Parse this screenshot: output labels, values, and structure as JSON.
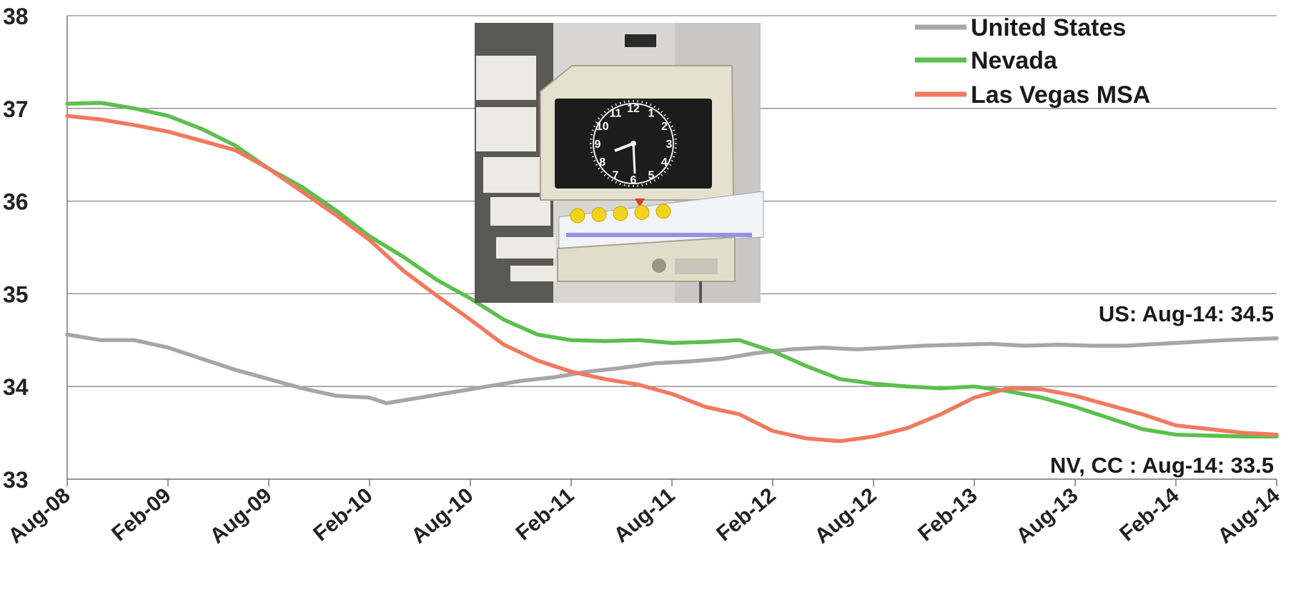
{
  "chart_data": {
    "type": "line",
    "title": "",
    "xlabel": "",
    "ylabel": "",
    "ylim": [
      33,
      38
    ],
    "y_ticks": [
      "33",
      "34",
      "35",
      "36",
      "37",
      "38"
    ],
    "grid": true,
    "legend_position": "top-right",
    "x_labels": [
      "Aug-08",
      "Feb-09",
      "Aug-09",
      "Feb-10",
      "Aug-10",
      "Feb-11",
      "Aug-11",
      "Feb-12",
      "Aug-12",
      "Feb-13",
      "Aug-13",
      "Feb-14",
      "Aug-14"
    ],
    "x_start": "2008-08",
    "x_end": "2014-08",
    "series": [
      {
        "name": "United States",
        "color": "#a6a6a6",
        "points": [
          [
            "2008-08",
            34.56
          ],
          [
            "2008-10",
            34.5
          ],
          [
            "2008-12",
            34.5
          ],
          [
            "2009-02",
            34.42
          ],
          [
            "2009-04",
            34.3
          ],
          [
            "2009-06",
            34.18
          ],
          [
            "2009-08",
            34.08
          ],
          [
            "2009-10",
            33.98
          ],
          [
            "2009-12",
            33.9
          ],
          [
            "2010-02",
            33.88
          ],
          [
            "2010-03",
            33.82
          ],
          [
            "2010-05",
            33.88
          ],
          [
            "2010-07",
            33.94
          ],
          [
            "2010-09",
            34.0
          ],
          [
            "2010-11",
            34.06
          ],
          [
            "2011-01",
            34.1
          ],
          [
            "2011-03",
            34.16
          ],
          [
            "2011-05",
            34.2
          ],
          [
            "2011-07",
            34.25
          ],
          [
            "2011-09",
            34.27
          ],
          [
            "2011-11",
            34.3
          ],
          [
            "2012-01",
            34.36
          ],
          [
            "2012-03",
            34.4
          ],
          [
            "2012-05",
            34.42
          ],
          [
            "2012-07",
            34.4
          ],
          [
            "2012-09",
            34.42
          ],
          [
            "2012-11",
            34.44
          ],
          [
            "2013-01",
            34.45
          ],
          [
            "2013-03",
            34.46
          ],
          [
            "2013-05",
            34.44
          ],
          [
            "2013-07",
            34.45
          ],
          [
            "2013-09",
            34.44
          ],
          [
            "2013-11",
            34.44
          ],
          [
            "2014-01",
            34.46
          ],
          [
            "2014-03",
            34.48
          ],
          [
            "2014-05",
            34.5
          ],
          [
            "2014-08",
            34.52
          ]
        ]
      },
      {
        "name": "Nevada",
        "color": "#5cbf4e",
        "points": [
          [
            "2008-08",
            37.05
          ],
          [
            "2008-10",
            37.06
          ],
          [
            "2008-12",
            37.0
          ],
          [
            "2009-02",
            36.92
          ],
          [
            "2009-04",
            36.78
          ],
          [
            "2009-06",
            36.6
          ],
          [
            "2009-08",
            36.35
          ],
          [
            "2009-10",
            36.15
          ],
          [
            "2009-12",
            35.9
          ],
          [
            "2010-02",
            35.62
          ],
          [
            "2010-04",
            35.4
          ],
          [
            "2010-06",
            35.15
          ],
          [
            "2010-08",
            34.95
          ],
          [
            "2010-10",
            34.72
          ],
          [
            "2010-12",
            34.56
          ],
          [
            "2011-02",
            34.5
          ],
          [
            "2011-04",
            34.49
          ],
          [
            "2011-06",
            34.5
          ],
          [
            "2011-08",
            34.47
          ],
          [
            "2011-10",
            34.48
          ],
          [
            "2011-12",
            34.5
          ],
          [
            "2012-02",
            34.38
          ],
          [
            "2012-04",
            34.22
          ],
          [
            "2012-06",
            34.08
          ],
          [
            "2012-08",
            34.03
          ],
          [
            "2012-10",
            34.0
          ],
          [
            "2012-12",
            33.98
          ],
          [
            "2013-02",
            34.0
          ],
          [
            "2013-04",
            33.95
          ],
          [
            "2013-06",
            33.88
          ],
          [
            "2013-08",
            33.78
          ],
          [
            "2013-10",
            33.66
          ],
          [
            "2013-12",
            33.54
          ],
          [
            "2014-02",
            33.48
          ],
          [
            "2014-04",
            33.47
          ],
          [
            "2014-06",
            33.46
          ],
          [
            "2014-08",
            33.46
          ]
        ]
      },
      {
        "name": "Las Vegas MSA",
        "color": "#f07a5e",
        "points": [
          [
            "2008-08",
            36.92
          ],
          [
            "2008-10",
            36.88
          ],
          [
            "2008-12",
            36.82
          ],
          [
            "2009-02",
            36.75
          ],
          [
            "2009-04",
            36.65
          ],
          [
            "2009-06",
            36.55
          ],
          [
            "2009-08",
            36.35
          ],
          [
            "2009-10",
            36.1
          ],
          [
            "2009-12",
            35.85
          ],
          [
            "2010-02",
            35.58
          ],
          [
            "2010-04",
            35.25
          ],
          [
            "2010-06",
            34.98
          ],
          [
            "2010-08",
            34.72
          ],
          [
            "2010-10",
            34.45
          ],
          [
            "2010-12",
            34.28
          ],
          [
            "2011-02",
            34.16
          ],
          [
            "2011-04",
            34.08
          ],
          [
            "2011-06",
            34.02
          ],
          [
            "2011-08",
            33.92
          ],
          [
            "2011-10",
            33.78
          ],
          [
            "2011-12",
            33.7
          ],
          [
            "2012-02",
            33.52
          ],
          [
            "2012-04",
            33.44
          ],
          [
            "2012-06",
            33.41
          ],
          [
            "2012-08",
            33.46
          ],
          [
            "2012-10",
            33.55
          ],
          [
            "2012-12",
            33.7
          ],
          [
            "2013-02",
            33.88
          ],
          [
            "2013-04",
            33.98
          ],
          [
            "2013-06",
            33.97
          ],
          [
            "2013-08",
            33.9
          ],
          [
            "2013-10",
            33.8
          ],
          [
            "2013-12",
            33.7
          ],
          [
            "2014-02",
            33.58
          ],
          [
            "2014-04",
            33.54
          ],
          [
            "2014-06",
            33.5
          ],
          [
            "2014-08",
            33.48
          ]
        ]
      }
    ],
    "annotations": [
      {
        "text": "US: Aug-14: 34.5"
      },
      {
        "text": "NV, CC : Aug-14: 33.5"
      }
    ]
  },
  "image": {
    "clock_numbers": [
      "12",
      "1",
      "2",
      "3",
      "4",
      "5",
      "6",
      "7",
      "8",
      "9",
      "10",
      "11"
    ]
  }
}
